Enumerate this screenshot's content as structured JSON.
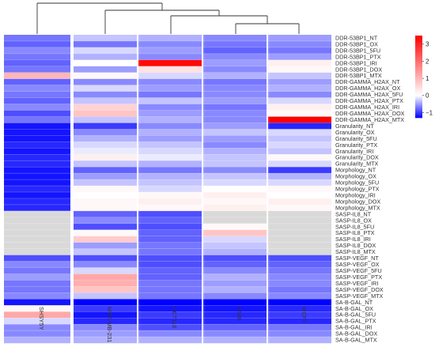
{
  "chart_data": {
    "type": "heatmap",
    "title": "",
    "columns": [
      "SHSY5Y",
      "MDA-MB-231",
      "HCT116",
      "A549",
      "MCF7"
    ],
    "column_groups": [
      [
        0
      ],
      [
        1,
        2,
        3,
        4
      ]
    ],
    "rows": [
      "DDR-53BP1_NT",
      "DDR-53BP1_OX",
      "DDR-53BP1_5FU",
      "DDR-53BP1_PTX",
      "DDR-53BP1_IRI",
      "DDR-53BP1_DOX",
      "DDR-53BP1_MTX",
      "DDR-GAMMA_H2AX_NT",
      "DDR-GAMMA_H2AX_OX",
      "DDR-GAMMA_H2AX_5FU",
      "DDR-GAMMA_H2AX_PTX",
      "DDR-GAMMA_H2AX_IRI",
      "DDR-GAMMA_H2AX_DOX",
      "DDR-GAMMA_H2AX_MTX",
      "Granularity_NT",
      "Granularity_OX",
      "Granularity_5FU",
      "Granularity_PTX",
      "Granularity_IRI",
      "Granularity_DOX",
      "Granularity_MTX",
      "Morphology_NT",
      "Morphology_OX",
      "Morphology_5FU",
      "Morphology_PTX",
      "Morphology_IRI",
      "Morphology_DOX",
      "Morphology_MTX",
      "SASP-IL8_NT",
      "SASP-IL8_OX",
      "SASP-IL8_5FU",
      "SASP-IL8_PTX",
      "SASP-IL8_IRI",
      "SASP-IL8_DOX",
      "SASP-IL8_MTX",
      "SASP-VEGF_NT",
      "SASP-VEGF_OX",
      "SASP-VEGF_5FU",
      "SASP-VEGF_PTX",
      "SASP-VEGF_IRI",
      "SASP-VEGF_DOX",
      "SASP-VEGF_MTX",
      "SA-B-GAL_NT",
      "SA-B-GAL_OX",
      "SA-B-GAL_5FU",
      "SA-B-GAL_PTX",
      "SA-B-GAL_IRI",
      "SA-B-GAL_DOX",
      "SA-B-GAL_MTX"
    ],
    "values": [
      [
        -0.7,
        -0.3,
        -0.4,
        -0.6,
        -0.5
      ],
      [
        -0.8,
        -0.7,
        -0.6,
        -0.7,
        -0.6
      ],
      [
        -0.6,
        -0.2,
        -0.5,
        -0.8,
        -0.7
      ],
      [
        -0.7,
        -0.4,
        -0.6,
        -0.6,
        -0.5
      ],
      [
        -0.8,
        0.0,
        3.4,
        -0.5,
        0.2
      ],
      [
        -0.7,
        -0.5,
        0.4,
        -0.6,
        0.1
      ],
      [
        1.0,
        0.1,
        -0.2,
        -0.4,
        -0.3
      ],
      [
        -0.8,
        -0.6,
        -0.6,
        -0.7,
        -0.5
      ],
      [
        -0.6,
        -0.2,
        -0.5,
        -0.6,
        -0.4
      ],
      [
        -0.7,
        -0.6,
        -0.7,
        -0.6,
        -0.6
      ],
      [
        -0.8,
        -0.3,
        -0.3,
        -0.5,
        -0.2
      ],
      [
        -0.6,
        0.6,
        -0.6,
        -0.7,
        0.2
      ],
      [
        -0.9,
        0.8,
        -0.5,
        -0.6,
        0.1
      ],
      [
        -0.7,
        -0.3,
        -0.4,
        -0.6,
        3.5
      ],
      [
        -1.2,
        -1.0,
        -0.6,
        -0.5,
        -1.1
      ],
      [
        -1.2,
        -0.6,
        -0.4,
        -0.3,
        -0.2
      ],
      [
        -1.2,
        -0.4,
        -0.5,
        -0.5,
        -0.3
      ],
      [
        -1.1,
        -0.2,
        -0.3,
        -0.6,
        -0.2
      ],
      [
        -1.2,
        -0.1,
        -0.2,
        -0.4,
        -0.3
      ],
      [
        -1.1,
        0.2,
        -0.1,
        -0.3,
        0.1
      ],
      [
        -1.1,
        -0.3,
        -0.4,
        -0.3,
        -0.2
      ],
      [
        -1.2,
        -0.8,
        -0.7,
        -0.6,
        -1.0
      ],
      [
        -1.2,
        -0.5,
        -0.4,
        -0.3,
        -0.4
      ],
      [
        -1.2,
        -0.3,
        -0.3,
        -0.2,
        -0.2
      ],
      [
        -1.1,
        0.1,
        -0.2,
        0.0,
        0.1
      ],
      [
        -1.2,
        0.0,
        0.1,
        0.2,
        0.0
      ],
      [
        -1.1,
        0.1,
        0.2,
        0.1,
        0.2
      ],
      [
        -1.1,
        0.1,
        0.1,
        0.2,
        0.1
      ],
      [
        null,
        -0.8,
        -0.9,
        null,
        null
      ],
      [
        null,
        -0.6,
        -0.8,
        null,
        null
      ],
      [
        null,
        -0.9,
        -0.9,
        0.1,
        null
      ],
      [
        null,
        0.1,
        -0.8,
        0.8,
        null
      ],
      [
        null,
        0.7,
        -0.8,
        -0.2,
        null
      ],
      [
        null,
        -0.5,
        -0.7,
        -0.3,
        null
      ],
      [
        null,
        -0.3,
        -0.7,
        -0.4,
        null
      ],
      [
        -0.9,
        -0.9,
        -0.9,
        -0.9,
        -0.9
      ],
      [
        -0.6,
        -0.6,
        -0.9,
        -0.8,
        -0.8
      ],
      [
        -0.7,
        -0.2,
        -0.8,
        -0.6,
        -0.7
      ],
      [
        -0.5,
        1.2,
        -0.8,
        -0.4,
        -0.6
      ],
      [
        -0.7,
        1.1,
        -0.7,
        -0.5,
        -0.6
      ],
      [
        -0.7,
        0.8,
        -0.7,
        -0.4,
        -0.7
      ],
      [
        -0.6,
        -0.3,
        -0.7,
        -0.6,
        -0.6
      ],
      [
        -1.2,
        -1.3,
        -1.3,
        -1.3,
        -1.3
      ],
      [
        0.1,
        -1.0,
        -1.2,
        -1.2,
        -1.1
      ],
      [
        1.2,
        -1.2,
        -1.0,
        -1.1,
        -1.0
      ],
      [
        -0.2,
        -1.1,
        -1.1,
        -1.1,
        -1.1
      ],
      [
        -0.6,
        -0.6,
        -0.9,
        -0.8,
        -0.7
      ],
      [
        -0.6,
        -0.5,
        -0.6,
        -0.6,
        -0.6
      ],
      [
        -0.4,
        -0.4,
        -0.4,
        -0.4,
        -0.4
      ]
    ],
    "color_scale": {
      "min": -1.3,
      "mid": 0,
      "max": 3.5,
      "low_color": "#0000ff",
      "mid_color": "#ffffff",
      "high_color": "#ff0000",
      "na_color": "#d9d9d9",
      "ticks": [
        -1,
        0,
        1,
        2,
        3
      ]
    },
    "legend": "top-right",
    "dendrogram": "top"
  }
}
